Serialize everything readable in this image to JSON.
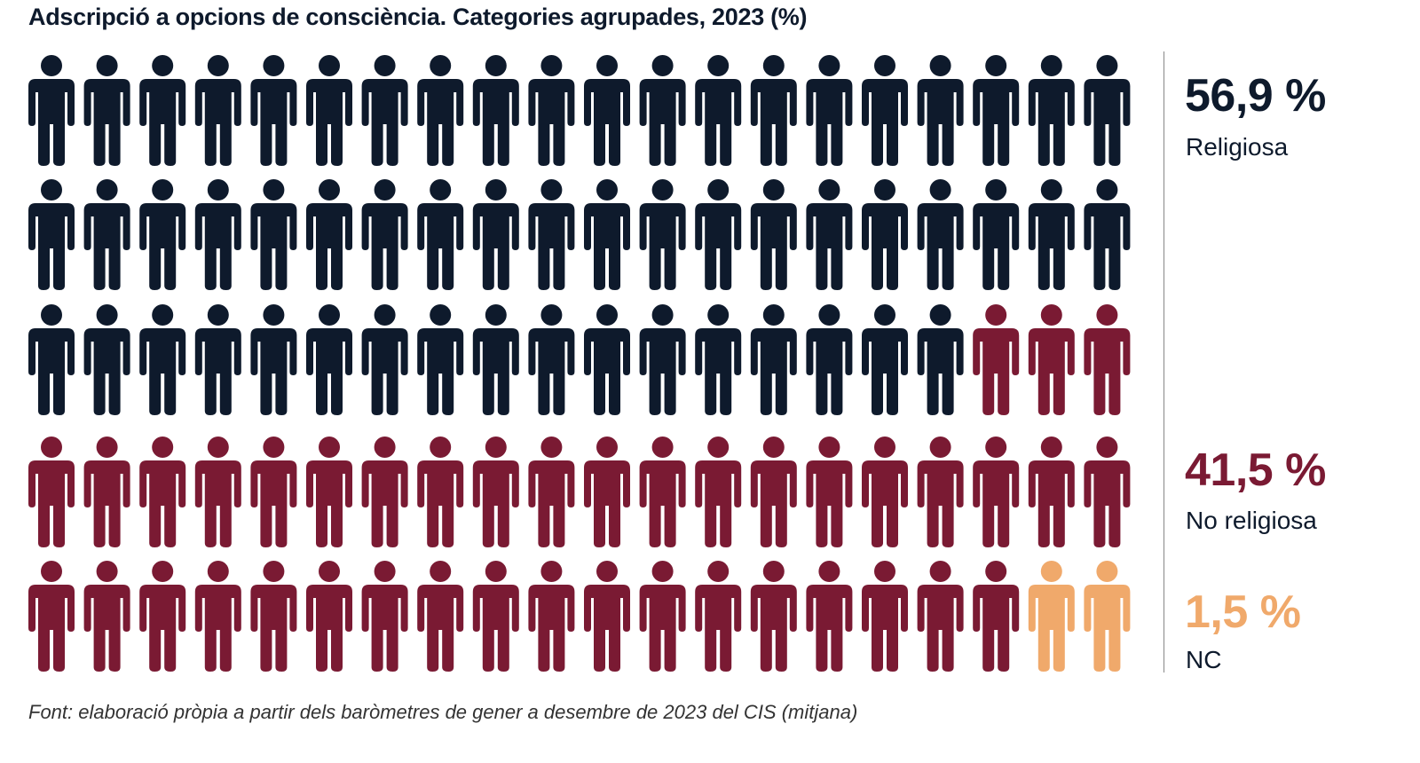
{
  "title": "Adscripció a opcions de consciència. Categories agrupades, 2023 (%)",
  "footer": "Font: elaboració pròpia a partir dels baròmetres de gener a desembre de 2023 del CIS (mitjana)",
  "chart_data": {
    "type": "pictogram",
    "title": "Adscripció a opcions de consciència. Categories agrupades, 2023 (%)",
    "grid": {
      "rows": 5,
      "columns": 20,
      "icon": "person-icon"
    },
    "categories": [
      "Religiosa",
      "No religiosa",
      "NC"
    ],
    "values": [
      56.9,
      41.5,
      1.5
    ],
    "value_labels": [
      "56,9 %",
      "41,5 %",
      "1,5 %"
    ],
    "icon_counts": [
      57,
      41,
      2
    ],
    "colors": [
      "#0e1a2c",
      "#7a1a33",
      "#f0a96b"
    ]
  }
}
